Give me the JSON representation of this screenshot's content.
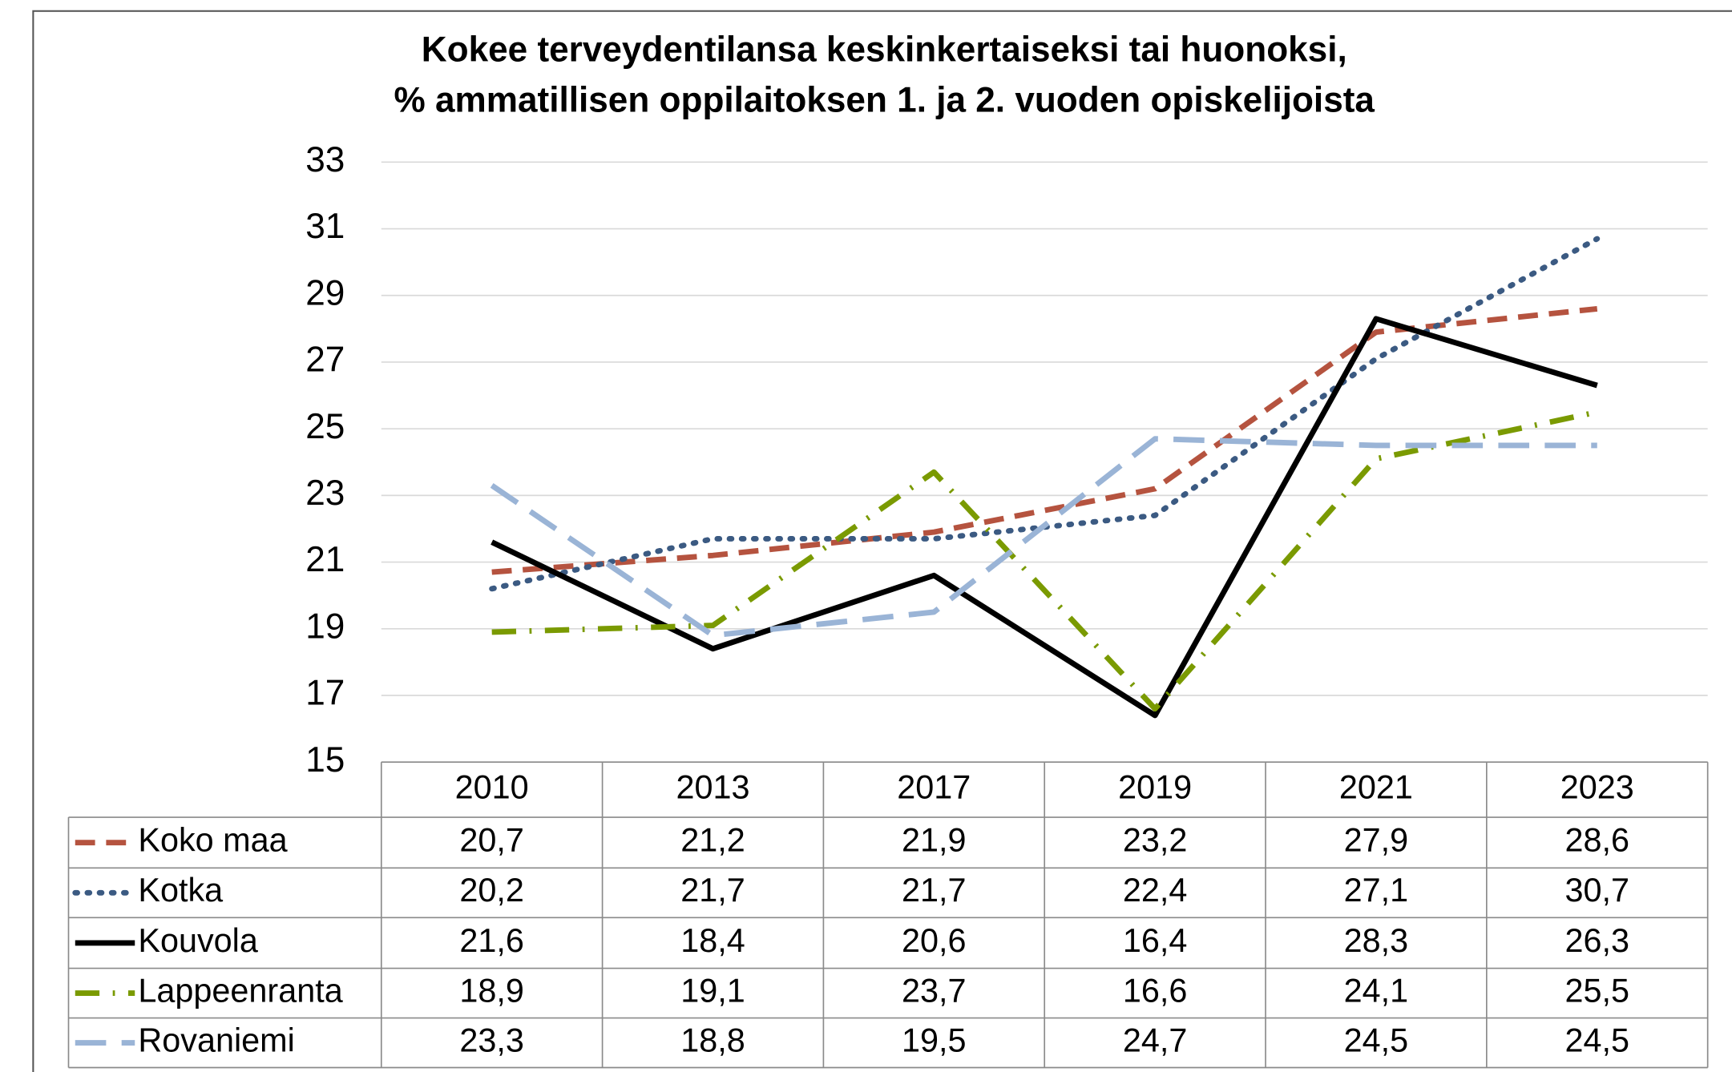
{
  "chart_data": {
    "type": "line",
    "title": "Kokee terveydentilansa keskinkertaiseksi tai huonoksi,",
    "subtitle": "% ammatillisen oppilaitoksen 1. ja 2. vuoden opiskelijoista",
    "categories": [
      "2010",
      "2013",
      "2017",
      "2019",
      "2021",
      "2023"
    ],
    "series": [
      {
        "name": "Koko maa",
        "color": "#b5533f",
        "dash": "dashed",
        "values": [
          20.7,
          21.2,
          21.9,
          23.2,
          27.9,
          28.6
        ],
        "value_labels": [
          "20,7",
          "21,2",
          "21,9",
          "23,2",
          "27,9",
          "28,6"
        ]
      },
      {
        "name": "Kotka",
        "color": "#3b5a82",
        "dash": "dotted",
        "values": [
          20.2,
          21.7,
          21.7,
          22.4,
          27.1,
          30.7
        ],
        "value_labels": [
          "20,2",
          "21,7",
          "21,7",
          "22,4",
          "27,1",
          "30,7"
        ]
      },
      {
        "name": "Kouvola",
        "color": "#000000",
        "dash": "solid",
        "values": [
          21.6,
          18.4,
          20.6,
          16.4,
          28.3,
          26.3
        ],
        "value_labels": [
          "21,6",
          "18,4",
          "20,6",
          "16,4",
          "28,3",
          "26,3"
        ]
      },
      {
        "name": "Lappeenranta",
        "color": "#7a9a01",
        "dash": "dashdot",
        "values": [
          18.9,
          19.1,
          23.7,
          16.6,
          24.1,
          25.5
        ],
        "value_labels": [
          "18,9",
          "19,1",
          "23,7",
          "16,6",
          "24,1",
          "25,5"
        ]
      },
      {
        "name": "Rovaniemi",
        "color": "#9ab4d6",
        "dash": "longdash",
        "values": [
          23.3,
          18.8,
          19.5,
          24.7,
          24.5,
          24.5
        ],
        "value_labels": [
          "23,3",
          "18,8",
          "19,5",
          "24,7",
          "24,5",
          "24,5"
        ]
      }
    ],
    "ylim": [
      15,
      33
    ],
    "yticks": [
      15,
      17,
      19,
      21,
      23,
      25,
      27,
      29,
      31,
      33
    ],
    "grid": true
  }
}
